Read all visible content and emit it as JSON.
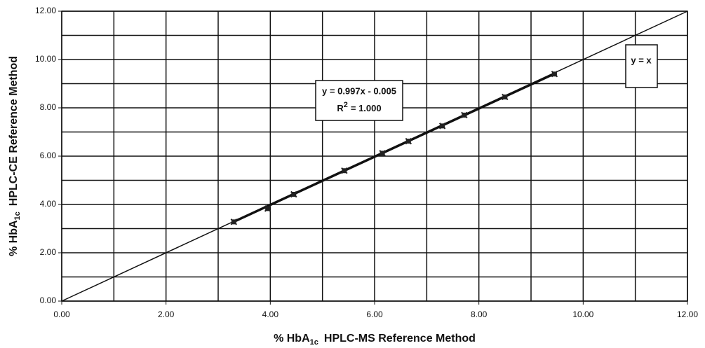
{
  "chart_data": {
    "type": "scatter",
    "x": [
      3.3,
      3.95,
      4.45,
      5.42,
      6.15,
      6.65,
      7.3,
      7.72,
      8.5,
      9.45
    ],
    "values": [
      3.28,
      3.83,
      4.42,
      5.4,
      6.12,
      6.62,
      7.25,
      7.7,
      8.45,
      9.4
    ],
    "color": "#222222",
    "xlim": [
      0,
      12
    ],
    "ylim": [
      0,
      12
    ],
    "xticks": [
      {
        "value": 0,
        "label": "0.00"
      },
      {
        "value": 2,
        "label": "2.00"
      },
      {
        "value": 4,
        "label": "4.00"
      },
      {
        "value": 6,
        "label": "6.00"
      },
      {
        "value": 8,
        "label": "8.00"
      },
      {
        "value": 10,
        "label": "10.00"
      },
      {
        "value": 12,
        "label": "12.00"
      }
    ],
    "yticks": [
      {
        "value": 0,
        "label": "0.00"
      },
      {
        "value": 2,
        "label": "2.00"
      },
      {
        "value": 4,
        "label": "4.00"
      },
      {
        "value": 6,
        "label": "6.00"
      },
      {
        "value": 8,
        "label": "8.00"
      },
      {
        "value": 10,
        "label": "10.00"
      },
      {
        "value": 12,
        "label": "12.00"
      }
    ],
    "x_minor_grid": [
      1,
      3,
      5,
      7,
      9,
      11
    ],
    "y_minor_grid": [
      1,
      3,
      5,
      7,
      9,
      11
    ],
    "grid": true,
    "xlabel": {
      "prefix": "% HbA",
      "subscript": "1c",
      "suffix": "HPLC-MS Reference Method"
    },
    "ylabel": {
      "prefix": "% HbA",
      "subscript": "1c",
      "suffix": "HPLC-CE Reference Method"
    },
    "trendline": {
      "slope": 0.997,
      "intercept": -0.005,
      "equation": "y = 0.997x - 0.005",
      "r2_prefix": "R",
      "r2_superscript": "2",
      "r2_suffix": "= 1.000"
    },
    "reference_line": {
      "slope": 1,
      "intercept": 0,
      "label": "y = x"
    }
  }
}
